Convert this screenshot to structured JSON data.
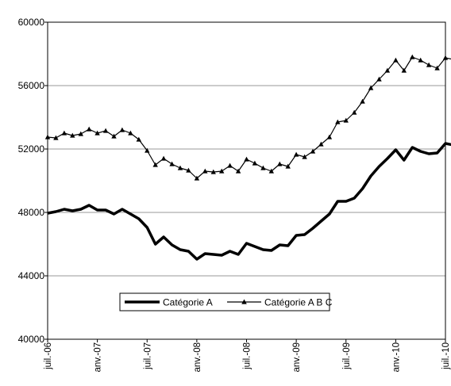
{
  "chart_data": {
    "type": "line",
    "title": "",
    "xlabel": "",
    "ylabel": "",
    "ylim": [
      40000,
      60000
    ],
    "yticks": [
      40000,
      44000,
      48000,
      52000,
      56000,
      60000
    ],
    "ytick_labels": [
      "40000",
      "44000",
      "48000",
      "52000",
      "56000",
      "60000"
    ],
    "x_range_months": [
      "2006-07",
      "2010-07"
    ],
    "xtick_labels": [
      "juil.-06",
      "anv.-07",
      "juil.-07",
      "anv.-08",
      "juil.-08",
      "anv.-09",
      "juil.-09",
      "anv.-10",
      "juil.-10"
    ],
    "grid": "horizontal",
    "legend_position": "bottom-left inside plot",
    "x": [
      "2006-07",
      "2006-08",
      "2006-09",
      "2006-10",
      "2006-11",
      "2006-12",
      "2007-01",
      "2007-02",
      "2007-03",
      "2007-04",
      "2007-05",
      "2007-06",
      "2007-07",
      "2007-08",
      "2007-09",
      "2007-10",
      "2007-11",
      "2007-12",
      "2008-01",
      "2008-02",
      "2008-03",
      "2008-04",
      "2008-05",
      "2008-06",
      "2008-07",
      "2008-08",
      "2008-09",
      "2008-10",
      "2008-11",
      "2008-12",
      "2009-01",
      "2009-02",
      "2009-03",
      "2009-04",
      "2009-05",
      "2009-06",
      "2009-07",
      "2009-08",
      "2009-09",
      "2009-10",
      "2009-11",
      "2009-12",
      "2010-01",
      "2010-02",
      "2010-03",
      "2010-04",
      "2010-05",
      "2010-06",
      "2010-07",
      "2010-08"
    ],
    "series": [
      {
        "name": "Catégorie A",
        "color": "#000000",
        "marker": "none",
        "line_width": "thick",
        "values": [
          47950,
          48050,
          48200,
          48100,
          48200,
          48450,
          48150,
          48150,
          47900,
          48200,
          47900,
          47600,
          47050,
          46000,
          46450,
          45950,
          45650,
          45550,
          45050,
          45400,
          45350,
          45300,
          45550,
          45350,
          46050,
          45850,
          45650,
          45600,
          45950,
          45900,
          46550,
          46600,
          47000,
          47450,
          47900,
          48700,
          48700,
          48900,
          49500,
          50300,
          50900,
          51400,
          51950,
          51300,
          52100,
          51850,
          51700,
          51750,
          52350,
          52250
        ]
      },
      {
        "name": "Catégorie A B C",
        "color": "#000000",
        "marker": "triangle",
        "line_width": "thin",
        "values": [
          52750,
          52700,
          53000,
          52850,
          52950,
          53250,
          53000,
          53150,
          52800,
          53200,
          53000,
          52600,
          51900,
          51000,
          51400,
          51050,
          50800,
          50650,
          50150,
          50600,
          50550,
          50600,
          50950,
          50600,
          51350,
          51100,
          50800,
          50600,
          51050,
          50900,
          51650,
          51500,
          51850,
          52300,
          52750,
          53700,
          53800,
          54300,
          55000,
          55850,
          56400,
          56950,
          57600,
          56950,
          57800,
          57600,
          57300,
          57100,
          57750,
          57650
        ]
      }
    ]
  }
}
